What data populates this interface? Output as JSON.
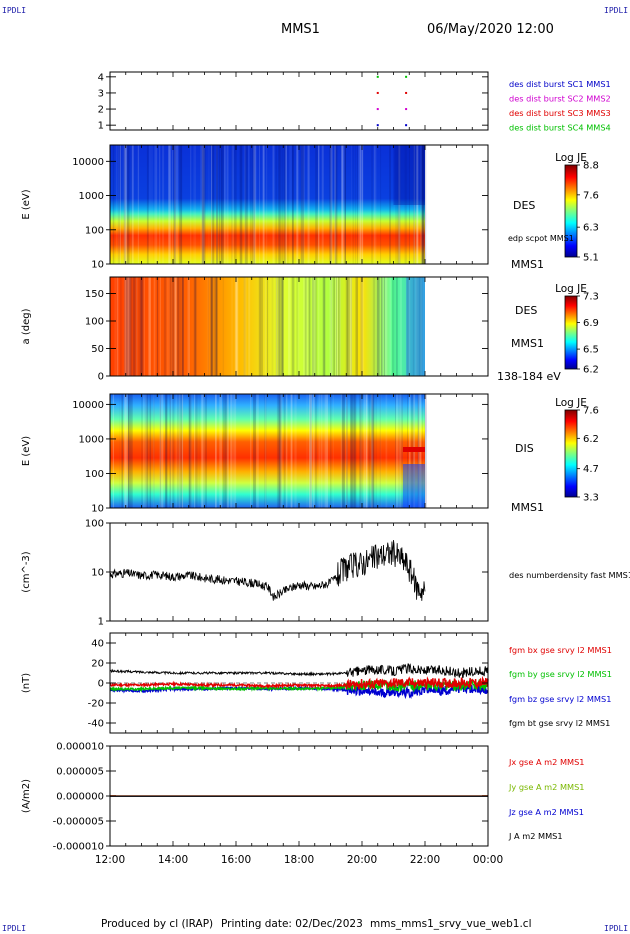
{
  "corners": {
    "tl": "IPDLI",
    "tr": "IPDLI",
    "bl": "IPDLI",
    "br": "IPDLI"
  },
  "header": {
    "spacecraft": "MMS1",
    "datetime": "06/May/2020 12:00"
  },
  "footer": {
    "producer": "Produced by cl (IRAP)",
    "printing": "Printing date: 02/Dec/2023",
    "script": "mms_mms1_srvy_vue_web1.cl"
  },
  "time_axis": {
    "ticks": [
      "12:00",
      "14:00",
      "16:00",
      "18:00",
      "20:00",
      "22:00",
      "00:00"
    ],
    "hours": [
      12,
      14,
      16,
      18,
      20,
      22,
      24
    ],
    "start_hour": 12,
    "end_hour": 24
  },
  "chart_data": [
    {
      "type": "scatter",
      "ylim": [
        0.7,
        4.3
      ],
      "yticks": [
        "1",
        "2",
        "3",
        "4"
      ],
      "legend": [
        {
          "label": "des dist burst SC1 MMS1",
          "color": "#0000c8"
        },
        {
          "label": "des dist burst SC2 MMS2",
          "color": "#d000d0"
        },
        {
          "label": "des dist burst SC3 MMS3",
          "color": "#e00000"
        },
        {
          "label": "des dist burst SC4 MMS4",
          "color": "#00c000"
        }
      ],
      "series": [
        {
          "name": "des dist burst SC1 MMS1",
          "color": "#0000c8",
          "y": 1,
          "x": [
            20.5,
            21.4
          ]
        },
        {
          "name": "des dist burst SC2 MMS2",
          "color": "#d000d0",
          "y": 2,
          "x": [
            20.5,
            21.4
          ]
        },
        {
          "name": "des dist burst SC3 MMS3",
          "color": "#e00000",
          "y": 3,
          "x": [
            20.5,
            21.4
          ]
        },
        {
          "name": "des dist burst SC4 MMS4",
          "color": "#00c000",
          "y": 4,
          "x": [
            20.5,
            21.4
          ]
        }
      ]
    },
    {
      "type": "heatmap",
      "ylabel": "E (eV)",
      "yscale": "log",
      "ylim": [
        10,
        30000
      ],
      "yticks": [
        "10",
        "100",
        "1000",
        "10000"
      ],
      "right_labels": [
        "DES",
        "edp scpot MMS1",
        "MMS1"
      ],
      "colorbar": {
        "title": "Log JE",
        "min": 5.1,
        "max": 8.8,
        "ticks": [
          "8.8",
          "7.6",
          "6.3",
          "5.1"
        ]
      },
      "data_end_hour": 22.0
    },
    {
      "type": "heatmap",
      "ylabel": "a (deg)",
      "ylim": [
        0,
        180
      ],
      "yticks": [
        "0",
        "50",
        "100",
        "150"
      ],
      "right_labels": [
        "DES",
        "MMS1",
        "138-184 eV"
      ],
      "colorbar": {
        "title": "Log JE",
        "min": 6.2,
        "max": 7.3,
        "ticks": [
          "7.3",
          "6.9",
          "6.5",
          "6.2"
        ]
      },
      "data_end_hour": 22.0
    },
    {
      "type": "heatmap",
      "ylabel": "E (eV)",
      "yscale": "log",
      "ylim": [
        10,
        20000
      ],
      "yticks": [
        "10",
        "100",
        "1000",
        "10000"
      ],
      "right_labels": [
        "DIS",
        "MMS1"
      ],
      "colorbar": {
        "title": "Log JE",
        "min": 3.3,
        "max": 7.6,
        "ticks": [
          "7.6",
          "6.2",
          "4.7",
          "3.3"
        ]
      },
      "data_end_hour": 22.0
    },
    {
      "type": "line",
      "ylabel": "(cm^-3)",
      "yscale": "log",
      "ylim": [
        1,
        100
      ],
      "yticks": [
        "1",
        "10",
        "100"
      ],
      "series": [
        {
          "name": "des numberdensity fast MMS1",
          "color": "#000000",
          "x": [
            12.0,
            12.5,
            13.0,
            13.5,
            14.0,
            14.5,
            15.0,
            15.5,
            16.0,
            16.5,
            17.0,
            17.2,
            17.5,
            18.0,
            18.5,
            19.0,
            19.2,
            19.5,
            20.0,
            20.3,
            20.6,
            21.0,
            21.4,
            21.7,
            22.0
          ],
          "y": [
            9.0,
            9.5,
            8.5,
            8.8,
            8.0,
            8.5,
            7.5,
            7.0,
            6.5,
            6.0,
            5.0,
            3.0,
            4.0,
            5.5,
            5.0,
            6.0,
            8.0,
            12.0,
            15.0,
            18.0,
            22.0,
            25.0,
            15.0,
            5.0,
            4.0
          ]
        }
      ]
    },
    {
      "type": "line",
      "ylabel": "(nT)",
      "ylim": [
        -50,
        50
      ],
      "yticks": [
        "-40",
        "-20",
        "0",
        "20",
        "40"
      ],
      "x": [
        12.0,
        13.0,
        14.0,
        15.0,
        16.0,
        17.0,
        18.0,
        19.0,
        19.5,
        20.0,
        20.5,
        21.0,
        21.5,
        22.0,
        22.5,
        23.0,
        23.5,
        24.0
      ],
      "series": [
        {
          "name": "fgm bx gse srvy l2 MMS1",
          "color": "#e00000",
          "values": [
            -2,
            -2,
            -1,
            -2,
            -2,
            -3,
            -2,
            -3,
            -2,
            -1,
            -1,
            0,
            0,
            0,
            0,
            0,
            0,
            0
          ]
        },
        {
          "name": "fgm by gse srvy l2 MMS1",
          "color": "#00c000",
          "values": [
            -6,
            -6,
            -5,
            -5,
            -6,
            -5,
            -6,
            -5,
            -4,
            -3,
            -2,
            -3,
            -2,
            -3,
            -2,
            -3,
            -2,
            -3
          ]
        },
        {
          "name": "fgm bz gse srvy l2 MMS1",
          "color": "#0000d0",
          "values": [
            -7,
            -8,
            -6,
            -6,
            -5,
            -6,
            -5,
            -6,
            -7,
            -8,
            -10,
            -8,
            -10,
            -6,
            -8,
            -5,
            -6,
            -7
          ]
        },
        {
          "name": "fgm bt gse srvy l2 MMS1",
          "color": "#000000",
          "values": [
            12,
            11,
            10,
            10,
            10,
            10,
            9,
            9,
            10,
            12,
            14,
            12,
            15,
            12,
            13,
            10,
            11,
            12
          ]
        }
      ]
    },
    {
      "type": "line",
      "ylabel": "(A/m2)",
      "ylim": [
        -1e-05,
        1e-05
      ],
      "yticks": [
        "-0.000010",
        "-0.000005",
        "0.000000",
        "0.000005",
        "0.000010"
      ],
      "series": [
        {
          "name": "Jx gse A m2 MMS1",
          "color": "#e00000",
          "values": [
            0,
            0
          ]
        },
        {
          "name": "Jy gse A m2 MMS1",
          "color": "#7ab800",
          "values": [
            0,
            0
          ]
        },
        {
          "name": "Jz gse A m2 MMS1",
          "color": "#0000d0",
          "values": [
            0,
            0
          ]
        },
        {
          "name": "J A m2 MMS1",
          "color": "#000000",
          "values": [
            0,
            0
          ]
        }
      ]
    }
  ]
}
